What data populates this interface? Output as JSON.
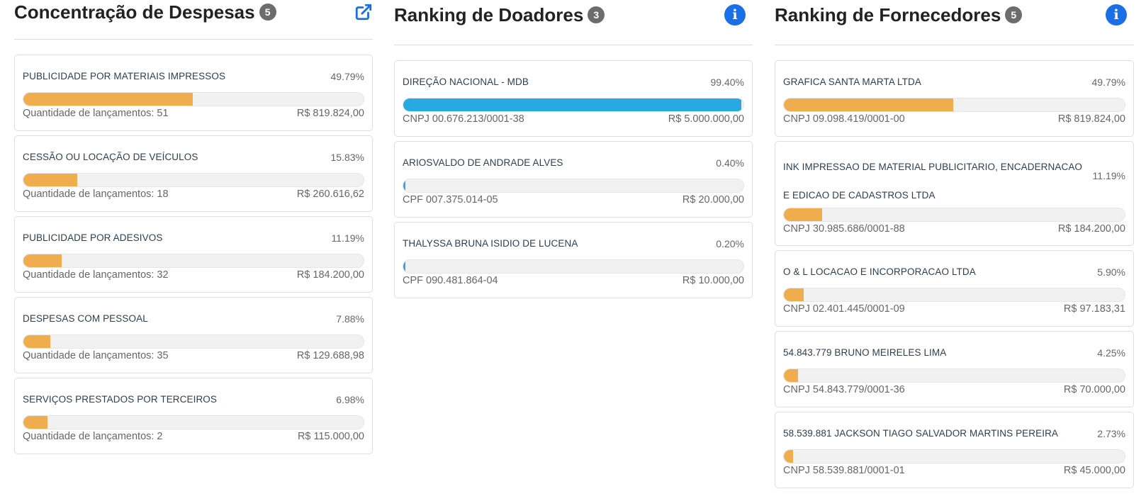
{
  "colors": {
    "orange": "#f0ad4e",
    "blue": "#29a9e1",
    "badge": "#6c6c6c",
    "info": "#1b6fe6"
  },
  "despesas": {
    "title": "Concentração de Despesas",
    "count": "5",
    "icon": "external-link-icon",
    "items": [
      {
        "name": "PUBLICIDADE POR MATERIAIS IMPRESSOS",
        "pct": "49.79%",
        "fraction": 0.4979,
        "detail": "Quantidade de lançamentos: 51",
        "amount": "R$ 819.824,00"
      },
      {
        "name": "CESSÃO OU LOCAÇÃO DE VEÍCULOS",
        "pct": "15.83%",
        "fraction": 0.1583,
        "detail": "Quantidade de lançamentos: 18",
        "amount": "R$ 260.616,62"
      },
      {
        "name": "PUBLICIDADE POR ADESIVOS",
        "pct": "11.19%",
        "fraction": 0.1119,
        "detail": "Quantidade de lançamentos: 32",
        "amount": "R$ 184.200,00"
      },
      {
        "name": "DESPESAS COM PESSOAL",
        "pct": "7.88%",
        "fraction": 0.0788,
        "detail": "Quantidade de lançamentos: 35",
        "amount": "R$ 129.688,98"
      },
      {
        "name": "SERVIÇOS PRESTADOS POR TERCEIROS",
        "pct": "6.98%",
        "fraction": 0.0698,
        "detail": "Quantidade de lançamentos: 2",
        "amount": "R$ 115.000,00"
      }
    ]
  },
  "doadores": {
    "title": "Ranking de Doadores",
    "count": "3",
    "icon": "info-icon",
    "icon_glyph": "i",
    "items": [
      {
        "name": "DIREÇÃO NACIONAL - MDB",
        "pct": "99.40%",
        "fraction": 0.994,
        "detail": "CNPJ 00.676.213/0001-38",
        "amount": "R$ 5.000.000,00"
      },
      {
        "name": "ARIOSVALDO DE ANDRADE ALVES",
        "pct": "0.40%",
        "fraction": 0.004,
        "detail": "CPF 007.375.014-05",
        "amount": "R$ 20.000,00"
      },
      {
        "name": "THALYSSA BRUNA ISIDIO DE LUCENA",
        "pct": "0.20%",
        "fraction": 0.002,
        "detail": "CPF 090.481.864-04",
        "amount": "R$ 10.000,00"
      }
    ]
  },
  "fornecedores": {
    "title": "Ranking de Fornecedores",
    "count": "5",
    "icon": "info-icon",
    "icon_glyph": "i",
    "items": [
      {
        "name": "GRAFICA SANTA MARTA LTDA",
        "pct": "49.79%",
        "fraction": 0.4979,
        "detail": "CNPJ 09.098.419/0001-00",
        "amount": "R$ 819.824,00"
      },
      {
        "name": "INK IMPRESSAO DE MATERIAL PUBLICITARIO, ENCADERNACAO E EDICAO DE CADASTROS LTDA",
        "pct": "11.19%",
        "fraction": 0.1119,
        "detail": "CNPJ 30.985.686/0001-88",
        "amount": "R$ 184.200,00"
      },
      {
        "name": "O & L LOCACAO E INCORPORACAO LTDA",
        "pct": "5.90%",
        "fraction": 0.059,
        "detail": "CNPJ 02.401.445/0001-09",
        "amount": "R$ 97.183,31"
      },
      {
        "name": "54.843.779 BRUNO MEIRELES LIMA",
        "pct": "4.25%",
        "fraction": 0.0425,
        "detail": "CNPJ 54.843.779/0001-36",
        "amount": "R$ 70.000,00"
      },
      {
        "name": "58.539.881 JACKSON TIAGO SALVADOR MARTINS PEREIRA",
        "pct": "2.73%",
        "fraction": 0.0273,
        "detail": "CNPJ 58.539.881/0001-01",
        "amount": "R$ 45.000,00"
      }
    ]
  }
}
